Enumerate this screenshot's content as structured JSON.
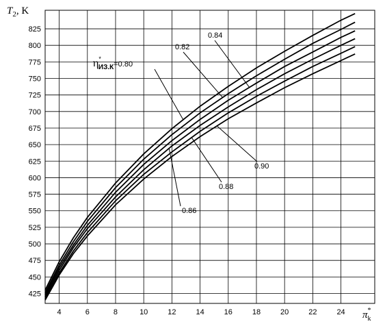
{
  "chart_data": {
    "type": "line",
    "y_label": {
      "symbol": "T",
      "sub": "2",
      "unit": ", K"
    },
    "x_label": {
      "symbol": "π",
      "sup": "*",
      "sub": "k"
    },
    "efficiency_symbol": {
      "symbol": "η",
      "sup": "*",
      "sub": "ИЗ.К"
    },
    "x": [
      3,
      4,
      5,
      6,
      8,
      10,
      12,
      14,
      16,
      18,
      20,
      22,
      24,
      25
    ],
    "series": [
      {
        "name": "=0.80",
        "color": "#000000",
        "values": [
          430,
          473,
          509,
          540,
          592,
          636,
          674,
          708,
          738,
          766,
          791,
          815,
          838,
          848
        ]
      },
      {
        "name": "0.82",
        "color": "#000000",
        "values": [
          426,
          468,
          503,
          534,
          585,
          628,
          665,
          698,
          727,
          754,
          779,
          803,
          824,
          835
        ]
      },
      {
        "name": "0.84",
        "color": "#000000",
        "values": [
          423,
          464,
          498,
          528,
          578,
          620,
          656,
          688,
          717,
          743,
          768,
          790,
          812,
          822
        ]
      },
      {
        "name": "0.86",
        "color": "#000000",
        "values": [
          420,
          460,
          494,
          523,
          571,
          612,
          648,
          679,
          707,
          733,
          757,
          779,
          800,
          810
        ]
      },
      {
        "name": "0.88",
        "color": "#000000",
        "values": [
          417,
          456,
          489,
          517,
          565,
          605,
          639,
          670,
          698,
          723,
          746,
          768,
          788,
          798
        ]
      },
      {
        "name": "0.90",
        "color": "#000000",
        "values": [
          415,
          453,
          485,
          512,
          559,
          598,
          632,
          662,
          689,
          713,
          736,
          757,
          777,
          787
        ]
      }
    ],
    "xlim": [
      3,
      26.4
    ],
    "ylim": [
      410,
      853
    ],
    "xticks": [
      4,
      6,
      8,
      10,
      12,
      14,
      16,
      18,
      20,
      22,
      24
    ],
    "yticks": [
      425,
      450,
      475,
      500,
      525,
      550,
      575,
      600,
      625,
      650,
      675,
      700,
      725,
      750,
      775,
      800,
      825
    ],
    "grid": true
  }
}
